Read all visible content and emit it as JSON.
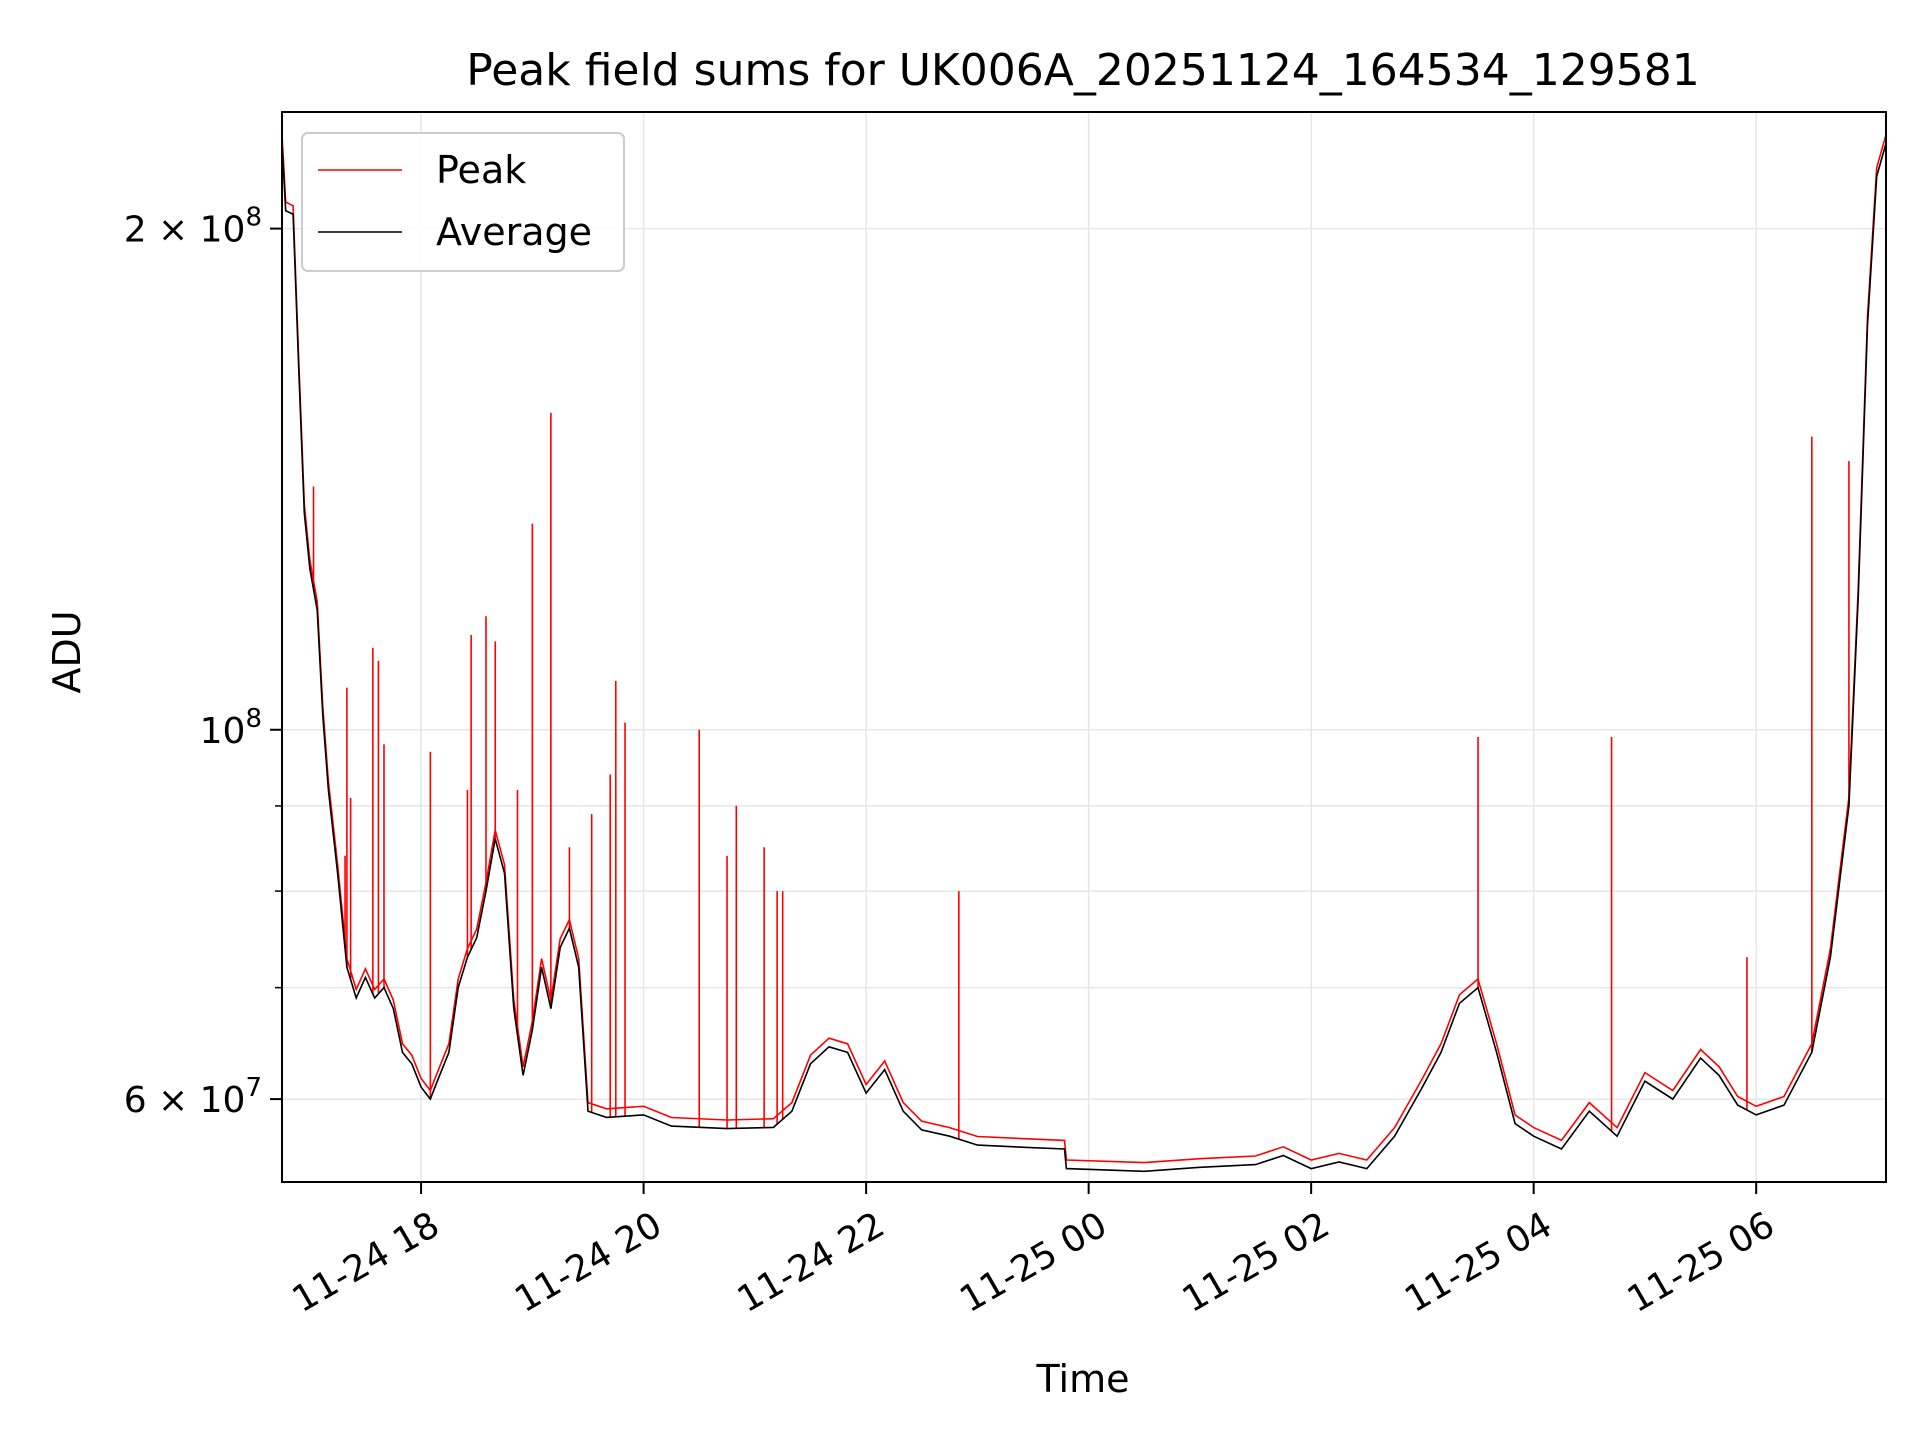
{
  "chart_data": {
    "type": "line",
    "title": "Peak field sums for UK006A_20251124_164534_129581",
    "xlabel": "Time",
    "ylabel": "ADU",
    "y_scale": "log",
    "ylim": [
      53500000,
      235000000
    ],
    "xlim": [
      "2025-11-24 16:45",
      "2025-11-25 07:10"
    ],
    "grid": true,
    "legend_placement": "upper-left",
    "x_ticks": [
      {
        "value": "2025-11-24 18:00",
        "label": "11-24 18"
      },
      {
        "value": "2025-11-24 20:00",
        "label": "11-24 20"
      },
      {
        "value": "2025-11-24 22:00",
        "label": "11-24 22"
      },
      {
        "value": "2025-11-25 00:00",
        "label": "11-25 00"
      },
      {
        "value": "2025-11-25 02:00",
        "label": "11-25 02"
      },
      {
        "value": "2025-11-25 04:00",
        "label": "11-25 04"
      },
      {
        "value": "2025-11-25 06:00",
        "label": "11-25 06"
      }
    ],
    "y_ticks_major": [
      {
        "value": 60000000,
        "base": "6",
        "exp": "7"
      },
      {
        "value": 100000000,
        "base": "",
        "exp": "8"
      },
      {
        "value": 200000000,
        "base": "2",
        "exp": "8"
      }
    ],
    "y_ticks_minor": [
      70000000,
      80000000,
      90000000
    ],
    "series": [
      {
        "name": "Average",
        "color": "#000000",
        "points": [
          [
            "2025-11-24 16:45",
            225000000
          ],
          [
            "2025-11-24 16:47",
            205000000
          ],
          [
            "2025-11-24 16:51",
            204000000
          ],
          [
            "2025-11-24 16:54",
            165000000
          ],
          [
            "2025-11-24 16:57",
            135000000
          ],
          [
            "2025-11-24 17:00",
            125000000
          ],
          [
            "2025-11-24 17:04",
            118000000
          ],
          [
            "2025-11-24 17:07",
            102000000
          ],
          [
            "2025-11-24 17:10",
            92000000
          ],
          [
            "2025-11-24 17:15",
            82000000
          ],
          [
            "2025-11-24 17:20",
            72000000
          ],
          [
            "2025-11-24 17:25",
            69000000
          ],
          [
            "2025-11-24 17:30",
            71000000
          ],
          [
            "2025-11-24 17:35",
            69000000
          ],
          [
            "2025-11-24 17:40",
            70000000
          ],
          [
            "2025-11-24 17:45",
            68000000
          ],
          [
            "2025-11-24 17:50",
            64000000
          ],
          [
            "2025-11-24 17:55",
            63000000
          ],
          [
            "2025-11-24 18:00",
            61000000
          ],
          [
            "2025-11-24 18:05",
            60000000
          ],
          [
            "2025-11-24 18:10",
            62000000
          ],
          [
            "2025-11-24 18:15",
            64000000
          ],
          [
            "2025-11-24 18:20",
            70000000
          ],
          [
            "2025-11-24 18:25",
            73000000
          ],
          [
            "2025-11-24 18:30",
            75000000
          ],
          [
            "2025-11-24 18:35",
            80000000
          ],
          [
            "2025-11-24 18:40",
            86000000
          ],
          [
            "2025-11-24 18:45",
            82000000
          ],
          [
            "2025-11-24 18:50",
            68000000
          ],
          [
            "2025-11-24 18:55",
            62000000
          ],
          [
            "2025-11-24 19:00",
            66000000
          ],
          [
            "2025-11-24 19:05",
            72000000
          ],
          [
            "2025-11-24 19:10",
            68000000
          ],
          [
            "2025-11-24 19:15",
            74000000
          ],
          [
            "2025-11-24 19:20",
            76000000
          ],
          [
            "2025-11-24 19:25",
            72000000
          ],
          [
            "2025-11-24 19:30",
            59000000
          ],
          [
            "2025-11-24 19:40",
            58500000
          ],
          [
            "2025-11-24 20:00",
            58700000
          ],
          [
            "2025-11-24 20:15",
            57800000
          ],
          [
            "2025-11-24 20:45",
            57600000
          ],
          [
            "2025-11-24 21:10",
            57700000
          ],
          [
            "2025-11-24 21:20",
            59000000
          ],
          [
            "2025-11-24 21:30",
            63000000
          ],
          [
            "2025-11-24 21:40",
            64500000
          ],
          [
            "2025-11-24 21:50",
            64000000
          ],
          [
            "2025-11-24 22:00",
            60500000
          ],
          [
            "2025-11-24 22:10",
            62500000
          ],
          [
            "2025-11-24 22:20",
            59000000
          ],
          [
            "2025-11-24 22:30",
            57500000
          ],
          [
            "2025-11-24 22:45",
            57000000
          ],
          [
            "2025-11-24 23:00",
            56300000
          ],
          [
            "2025-11-24 23:30",
            56100000
          ],
          [
            "2025-11-24 23:47",
            56000000
          ],
          [
            "2025-11-24 23:48",
            54500000
          ],
          [
            "2025-11-25 00:30",
            54300000
          ],
          [
            "2025-11-25 01:00",
            54600000
          ],
          [
            "2025-11-25 01:30",
            54800000
          ],
          [
            "2025-11-25 01:45",
            55500000
          ],
          [
            "2025-11-25 02:00",
            54500000
          ],
          [
            "2025-11-25 02:15",
            55000000
          ],
          [
            "2025-11-25 02:30",
            54500000
          ],
          [
            "2025-11-25 02:45",
            57000000
          ],
          [
            "2025-11-25 03:00",
            61000000
          ],
          [
            "2025-11-25 03:10",
            64000000
          ],
          [
            "2025-11-25 03:20",
            68500000
          ],
          [
            "2025-11-25 03:30",
            70000000
          ],
          [
            "2025-11-25 03:40",
            64000000
          ],
          [
            "2025-11-25 03:50",
            58000000
          ],
          [
            "2025-11-25 04:00",
            57000000
          ],
          [
            "2025-11-25 04:15",
            56000000
          ],
          [
            "2025-11-25 04:30",
            59000000
          ],
          [
            "2025-11-25 04:45",
            57000000
          ],
          [
            "2025-11-25 05:00",
            61500000
          ],
          [
            "2025-11-25 05:15",
            60000000
          ],
          [
            "2025-11-25 05:30",
            63500000
          ],
          [
            "2025-11-25 05:40",
            62000000
          ],
          [
            "2025-11-25 05:50",
            59500000
          ],
          [
            "2025-11-25 06:00",
            58700000
          ],
          [
            "2025-11-25 06:15",
            59500000
          ],
          [
            "2025-11-25 06:30",
            64000000
          ],
          [
            "2025-11-25 06:40",
            73000000
          ],
          [
            "2025-11-25 06:50",
            90000000
          ],
          [
            "2025-11-25 06:55",
            120000000
          ],
          [
            "2025-11-25 07:00",
            175000000
          ],
          [
            "2025-11-25 07:05",
            215000000
          ],
          [
            "2025-11-25 07:10",
            225000000
          ]
        ]
      },
      {
        "name": "Peak",
        "color": "#ff0000",
        "spikes": [
          [
            "2025-11-24 17:02",
            140000000
          ],
          [
            "2025-11-24 17:19",
            84000000
          ],
          [
            "2025-11-24 17:20",
            106000000
          ],
          [
            "2025-11-24 17:22",
            91000000
          ],
          [
            "2025-11-24 17:34",
            112000000
          ],
          [
            "2025-11-24 17:37",
            110000000
          ],
          [
            "2025-11-24 17:40",
            98000000
          ],
          [
            "2025-11-24 18:05",
            97000000
          ],
          [
            "2025-11-24 18:25",
            92000000
          ],
          [
            "2025-11-24 18:27",
            114000000
          ],
          [
            "2025-11-24 18:35",
            117000000
          ],
          [
            "2025-11-24 18:40",
            113000000
          ],
          [
            "2025-11-24 18:52",
            92000000
          ],
          [
            "2025-11-24 19:00",
            133000000
          ],
          [
            "2025-11-24 19:10",
            155000000
          ],
          [
            "2025-11-24 19:20",
            85000000
          ],
          [
            "2025-11-24 19:32",
            89000000
          ],
          [
            "2025-11-24 19:42",
            94000000
          ],
          [
            "2025-11-24 19:45",
            107000000
          ],
          [
            "2025-11-24 19:50",
            101000000
          ],
          [
            "2025-11-24 20:30",
            100000000
          ],
          [
            "2025-11-24 20:45",
            84000000
          ],
          [
            "2025-11-24 20:50",
            90000000
          ],
          [
            "2025-11-24 21:05",
            85000000
          ],
          [
            "2025-11-24 21:12",
            80000000
          ],
          [
            "2025-11-24 21:15",
            80000000
          ],
          [
            "2025-11-24 22:50",
            80000000
          ],
          [
            "2025-11-25 03:30",
            99000000
          ],
          [
            "2025-11-25 04:42",
            99000000
          ],
          [
            "2025-11-25 05:55",
            73000000
          ],
          [
            "2025-11-25 06:30",
            150000000
          ],
          [
            "2025-11-25 06:50",
            145000000
          ]
        ]
      }
    ]
  }
}
